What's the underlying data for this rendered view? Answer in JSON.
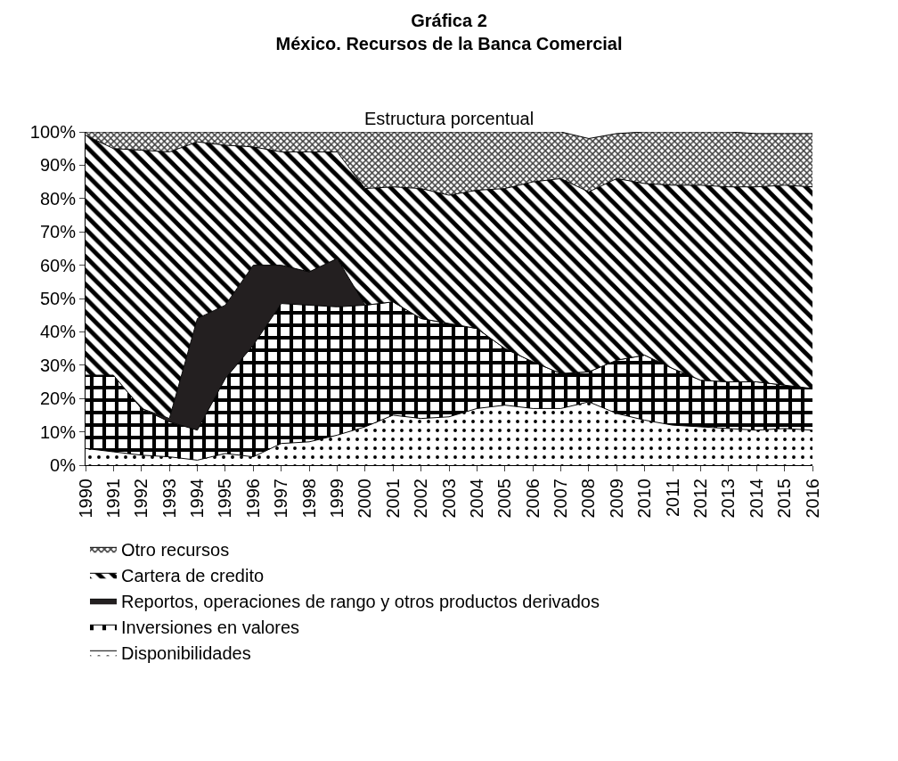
{
  "chart_data": {
    "type": "area",
    "title": "Gráfica 2",
    "subtitle": "México. Recursos de la Banca Comercial",
    "annotations": [
      "Estructura porcentual"
    ],
    "categories": [
      "1990",
      "1991",
      "1992",
      "1993",
      "1994",
      "1995",
      "1996",
      "1997",
      "1998",
      "1999",
      "2000",
      "2001",
      "2002",
      "2003",
      "2004",
      "2005",
      "2006",
      "2007",
      "2008",
      "2009",
      "2010",
      "2011",
      "2012",
      "2013",
      "2014",
      "2015",
      "2016"
    ],
    "stacked": true,
    "series": [
      {
        "name": "Disponibilidades",
        "color": "#ffffff",
        "values": [
          5,
          4,
          3,
          2.5,
          1.5,
          3.5,
          2.5,
          6.5,
          7,
          9,
          11.5,
          15,
          14,
          14.5,
          17,
          18,
          17,
          17,
          19,
          15.5,
          13.5,
          12,
          11.5,
          11,
          10.5,
          11,
          10.5
        ]
      },
      {
        "name": "Inversiones en valores",
        "color": "#000000",
        "values": [
          22,
          23,
          14,
          10.5,
          9,
          22.5,
          33.5,
          42,
          41,
          38.5,
          36.5,
          34,
          30,
          28,
          24,
          17,
          14,
          10.5,
          9,
          16,
          19.5,
          17,
          14,
          14,
          14.5,
          13,
          12.5
        ]
      },
      {
        "name": "Reportos, operaciones de rango y otros productos derivados",
        "color": "#231f20",
        "values": [
          0,
          0,
          0,
          1,
          33.5,
          22,
          24,
          11.5,
          10,
          14.5,
          0,
          0,
          0,
          0,
          0,
          0,
          0,
          0,
          0,
          0,
          0,
          0,
          0,
          0,
          0,
          0,
          0
        ]
      },
      {
        "name": "Cartera de credito",
        "color": "#000000",
        "values": [
          72,
          68,
          77.5,
          80,
          53,
          48,
          35.5,
          34,
          36,
          32,
          35,
          34.5,
          39,
          38.5,
          41.5,
          48,
          54,
          58.5,
          54,
          54.5,
          51.5,
          55,
          58.5,
          58.5,
          58.5,
          60,
          60.5
        ]
      },
      {
        "name": "Otro recursos",
        "color": "#404040",
        "values": [
          1,
          5,
          5.5,
          6,
          3,
          4,
          4.5,
          6,
          6,
          6,
          17,
          16.5,
          17,
          19,
          17.5,
          17,
          15,
          14,
          16,
          13.5,
          15.5,
          16,
          16,
          16.5,
          16,
          15.5,
          16
        ]
      }
    ],
    "ylim": [
      0,
      100
    ],
    "yticks": [
      {
        "value": 0,
        "label": "0%"
      },
      {
        "value": 10,
        "label": "10%"
      },
      {
        "value": 20,
        "label": "20%"
      },
      {
        "value": 30,
        "label": "30%"
      },
      {
        "value": 40,
        "label": "40%"
      },
      {
        "value": 50,
        "label": "50%"
      },
      {
        "value": 60,
        "label": "60%"
      },
      {
        "value": 70,
        "label": "70%"
      },
      {
        "value": 80,
        "label": "80%"
      },
      {
        "value": 90,
        "label": "90%"
      },
      {
        "value": 100,
        "label": "100%"
      }
    ],
    "grid": false,
    "legend": "bottom"
  }
}
